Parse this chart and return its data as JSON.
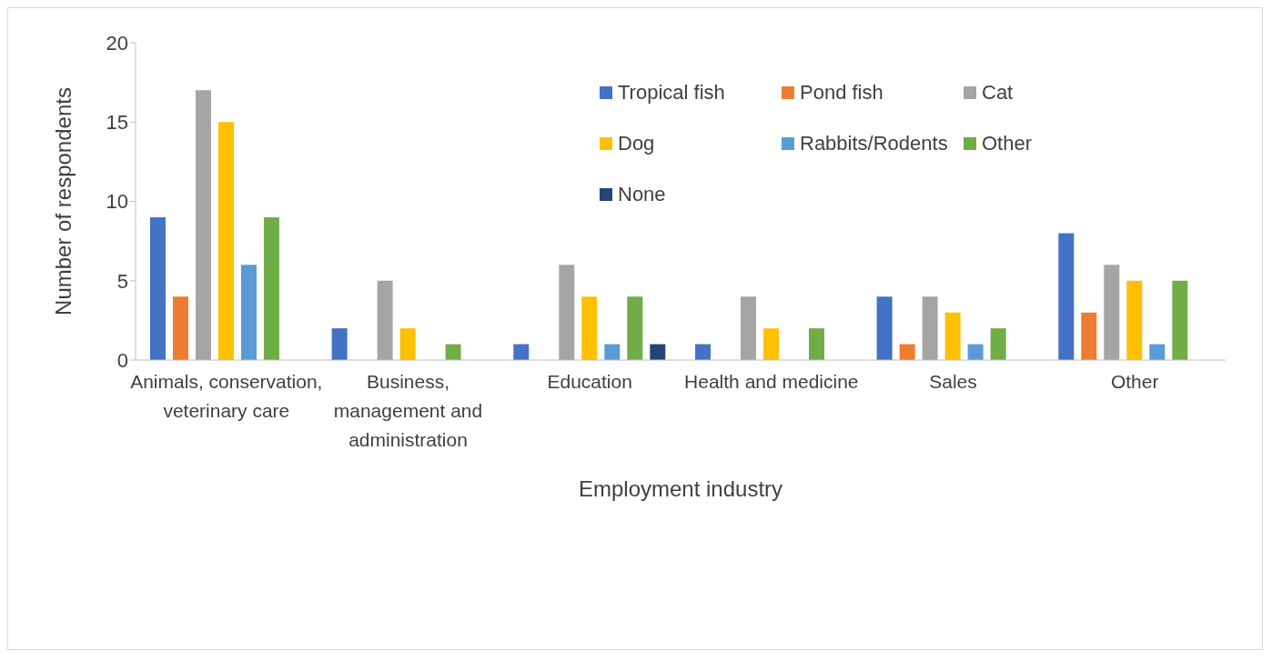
{
  "chart_data": {
    "type": "bar",
    "xlabel": "Employment industry",
    "ylabel": "Number of respondents",
    "categories": [
      "Animals, conservation, veterinary care",
      "Business, management and administration",
      "Education",
      "Health and medicine",
      "Sales",
      "Other"
    ],
    "series": [
      {
        "name": "Tropical fish",
        "color": "#4472c4",
        "values": [
          9,
          2,
          1,
          1,
          4,
          8
        ]
      },
      {
        "name": "Pond fish",
        "color": "#ed7d31",
        "values": [
          4,
          0,
          0,
          0,
          1,
          3
        ]
      },
      {
        "name": "Cat",
        "color": "#a5a5a5",
        "values": [
          17,
          5,
          6,
          4,
          4,
          6
        ]
      },
      {
        "name": "Dog",
        "color": "#ffc000",
        "values": [
          15,
          2,
          4,
          2,
          3,
          5
        ]
      },
      {
        "name": "Rabbits/Rodents",
        "color": "#5b9bd5",
        "values": [
          6,
          0,
          1,
          0,
          1,
          1
        ]
      },
      {
        "name": "Other",
        "color": "#70ad47",
        "values": [
          9,
          1,
          4,
          2,
          2,
          5
        ]
      },
      {
        "name": "None",
        "color": "#264478",
        "values": [
          0,
          0,
          1,
          0,
          0,
          0
        ]
      }
    ],
    "ylim": [
      0,
      20
    ],
    "yticks": [
      0,
      5,
      10,
      15,
      20
    ],
    "grid": false,
    "legend": "top right"
  }
}
